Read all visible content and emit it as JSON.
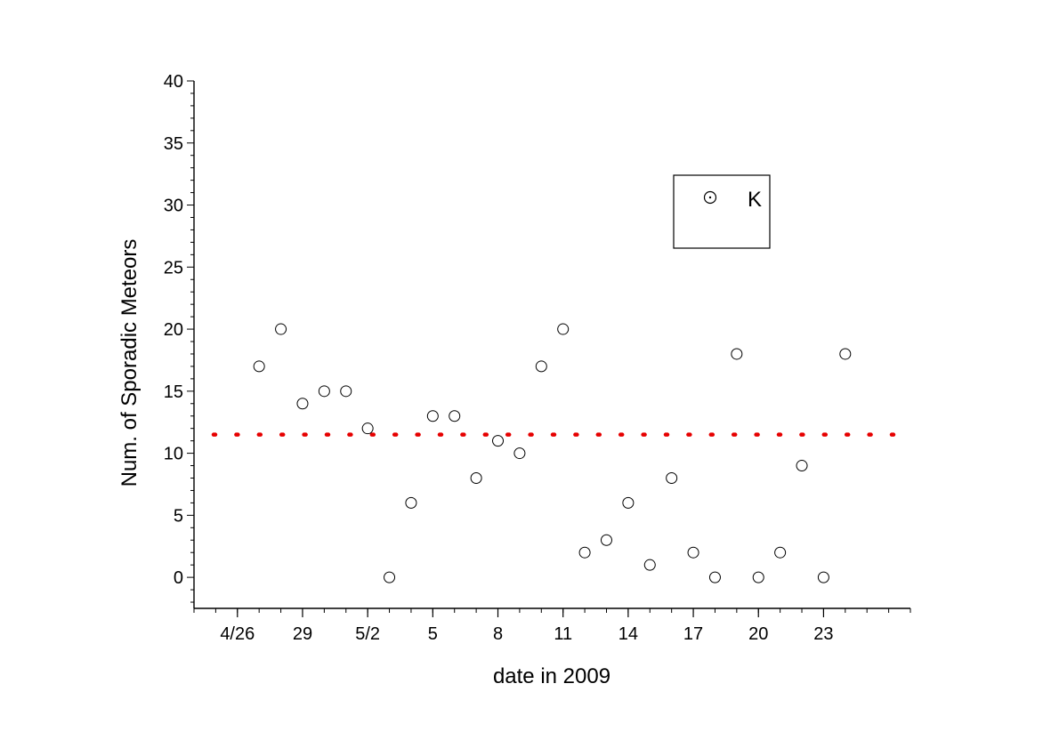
{
  "chart_data": {
    "type": "scatter",
    "xlabel": "date in 2009",
    "ylabel": "Num. of Sporadic Meteors",
    "ylim": [
      -2.5,
      40
    ],
    "yticks": [
      0,
      5,
      10,
      15,
      20,
      25,
      30,
      35,
      40
    ],
    "xlim": [
      "2009-04-24",
      "2009-05-27"
    ],
    "xticks": [
      {
        "date": "2009-04-26",
        "label": "4/26"
      },
      {
        "date": "2009-04-29",
        "label": "29"
      },
      {
        "date": "2009-05-02",
        "label": "5/2"
      },
      {
        "date": "2009-05-05",
        "label": "5"
      },
      {
        "date": "2009-05-08",
        "label": "8"
      },
      {
        "date": "2009-05-11",
        "label": "11"
      },
      {
        "date": "2009-05-14",
        "label": "14"
      },
      {
        "date": "2009-05-17",
        "label": "17"
      },
      {
        "date": "2009-05-20",
        "label": "20"
      },
      {
        "date": "2009-05-23",
        "label": "23"
      }
    ],
    "series": [
      {
        "name": "K",
        "marker": "open-circle",
        "color": "#000000",
        "points": [
          {
            "x": "2009-04-27",
            "y": 17
          },
          {
            "x": "2009-04-28",
            "y": 20
          },
          {
            "x": "2009-04-29",
            "y": 14
          },
          {
            "x": "2009-04-30",
            "y": 15
          },
          {
            "x": "2009-05-01",
            "y": 15
          },
          {
            "x": "2009-05-02",
            "y": 12
          },
          {
            "x": "2009-05-03",
            "y": 0
          },
          {
            "x": "2009-05-04",
            "y": 6
          },
          {
            "x": "2009-05-05",
            "y": 13
          },
          {
            "x": "2009-05-06",
            "y": 13
          },
          {
            "x": "2009-05-07",
            "y": 8
          },
          {
            "x": "2009-05-08",
            "y": 11
          },
          {
            "x": "2009-05-09",
            "y": 10
          },
          {
            "x": "2009-05-10",
            "y": 17
          },
          {
            "x": "2009-05-11",
            "y": 20
          },
          {
            "x": "2009-05-12",
            "y": 2
          },
          {
            "x": "2009-05-13",
            "y": 3
          },
          {
            "x": "2009-05-14",
            "y": 6
          },
          {
            "x": "2009-05-15",
            "y": 1
          },
          {
            "x": "2009-05-16",
            "y": 8
          },
          {
            "x": "2009-05-17",
            "y": 2
          },
          {
            "x": "2009-05-18",
            "y": 0
          },
          {
            "x": "2009-05-19",
            "y": 18
          },
          {
            "x": "2009-05-20",
            "y": 0
          },
          {
            "x": "2009-05-21",
            "y": 2
          },
          {
            "x": "2009-05-22",
            "y": 9
          },
          {
            "x": "2009-05-23",
            "y": 0
          },
          {
            "x": "2009-05-24",
            "y": 18
          }
        ]
      }
    ],
    "reference_line": {
      "y": 11.5,
      "style": "dotted",
      "color": "#e60000"
    },
    "legend": {
      "placement": "upper-right",
      "entries": [
        "K"
      ]
    },
    "grid": false
  }
}
